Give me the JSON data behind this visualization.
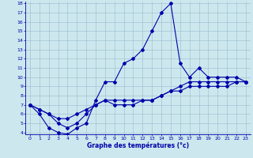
{
  "xlabel": "Graphe des températures (°c)",
  "x_values": [
    0,
    1,
    2,
    3,
    4,
    5,
    6,
    7,
    8,
    9,
    10,
    11,
    12,
    13,
    14,
    15,
    16,
    17,
    18,
    19,
    20,
    21,
    22,
    23
  ],
  "line1": [
    7.0,
    6.0,
    4.5,
    4.0,
    3.8,
    4.5,
    5.0,
    7.5,
    9.5,
    9.5,
    11.5,
    12.0,
    13.0,
    15.0,
    17.0,
    18.0,
    11.5,
    10.0,
    11.0,
    10.0,
    10.0,
    10.0,
    10.0,
    9.5
  ],
  "line2": [
    7.0,
    6.5,
    6.0,
    5.5,
    5.5,
    6.0,
    6.5,
    7.0,
    7.5,
    7.5,
    7.5,
    7.5,
    7.5,
    7.5,
    8.0,
    8.5,
    9.0,
    9.5,
    9.5,
    9.5,
    9.5,
    9.5,
    9.5,
    9.5
  ],
  "line3": [
    7.0,
    6.5,
    6.0,
    5.0,
    4.5,
    5.0,
    6.0,
    7.0,
    7.5,
    7.0,
    7.0,
    7.0,
    7.5,
    7.5,
    8.0,
    8.5,
    8.5,
    9.0,
    9.0,
    9.0,
    9.0,
    9.0,
    9.5,
    9.5
  ],
  "line_color": "#0000aa",
  "bg_color": "#cce8ee",
  "grid_color": "#99bbcc",
  "ylim": [
    4,
    18
  ],
  "yticks": [
    4,
    5,
    6,
    7,
    8,
    9,
    10,
    11,
    12,
    13,
    14,
    15,
    16,
    17,
    18
  ],
  "xlim": [
    0,
    23
  ],
  "xticks": [
    0,
    1,
    2,
    3,
    4,
    5,
    6,
    7,
    8,
    9,
    10,
    11,
    12,
    13,
    14,
    15,
    16,
    17,
    18,
    19,
    20,
    21,
    22,
    23
  ]
}
